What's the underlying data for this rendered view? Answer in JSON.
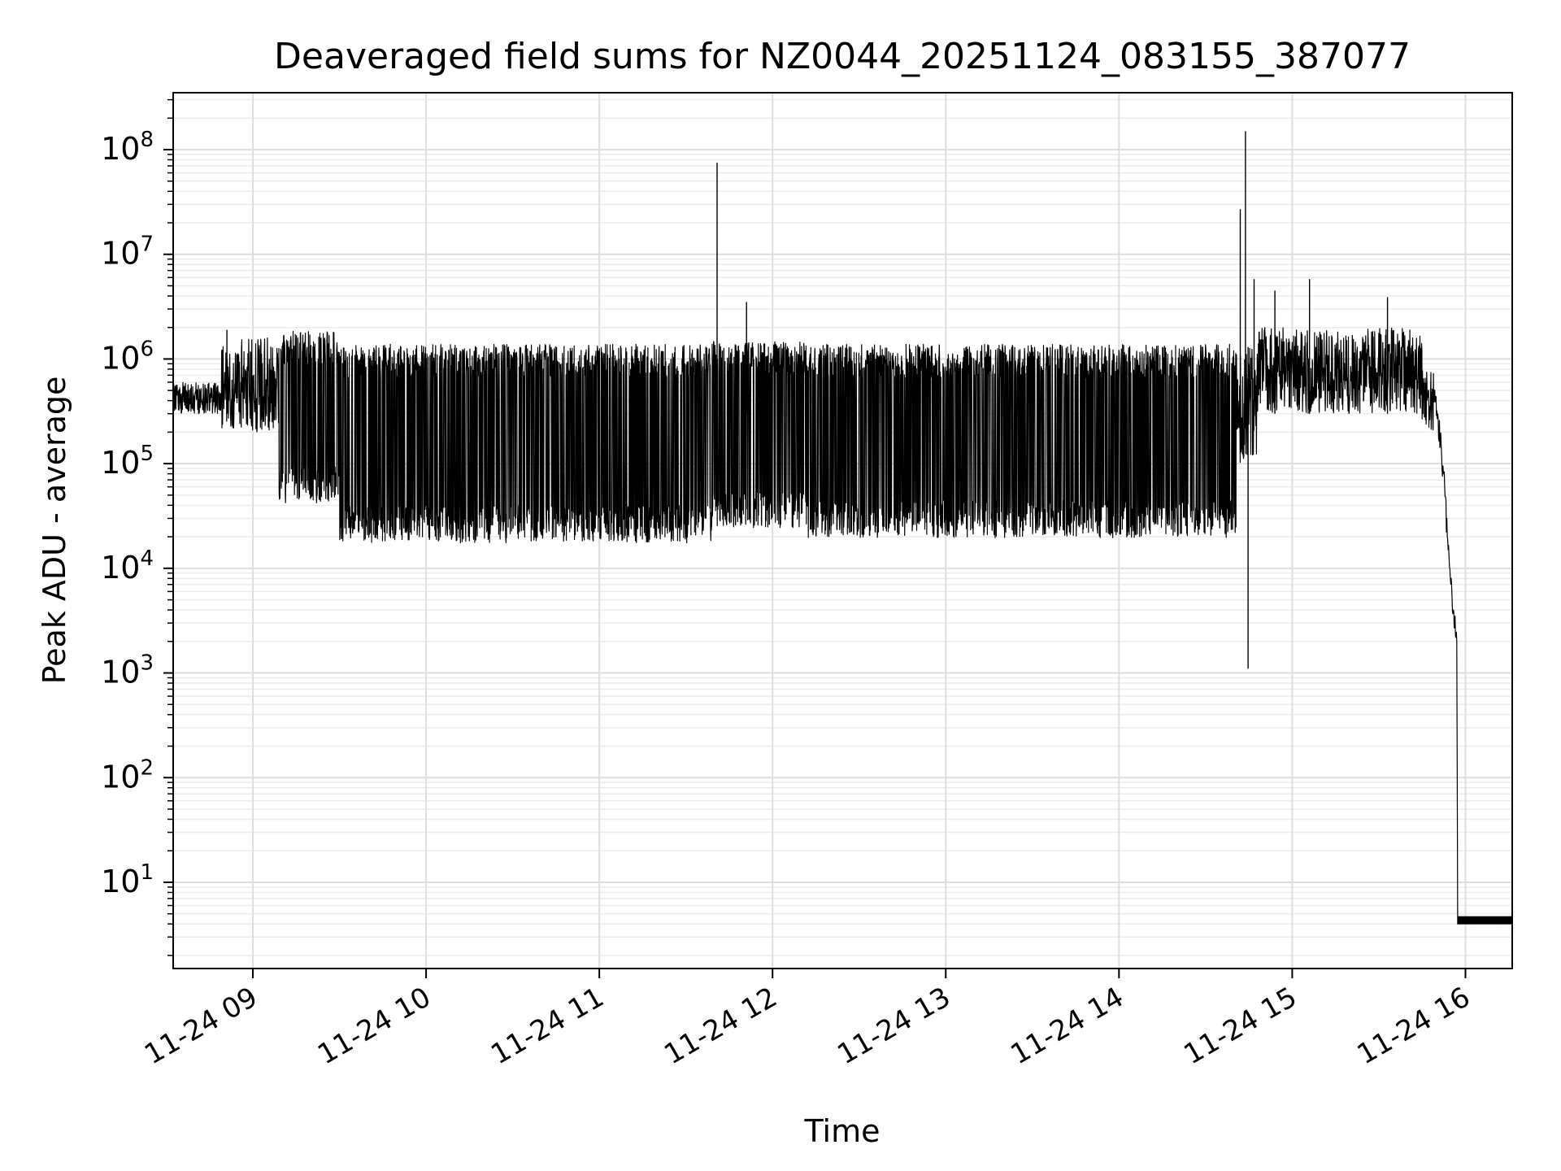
{
  "chart_data": {
    "type": "line",
    "title": "Deaveraged field sums for NZ0044_20251124_083155_387077",
    "xlabel": "Time",
    "ylabel": "Peak ADU - average",
    "yscale": "log",
    "ylim": [
      1.5,
      350000000
    ],
    "xlim_hours": [
      8.54,
      16.27
    ],
    "grid": true,
    "line_color": "#000000",
    "x_ticks": [
      {
        "hour": 9,
        "label": "11-24 09"
      },
      {
        "hour": 10,
        "label": "11-24 10"
      },
      {
        "hour": 11,
        "label": "11-24 11"
      },
      {
        "hour": 12,
        "label": "11-24 12"
      },
      {
        "hour": 13,
        "label": "11-24 13"
      },
      {
        "hour": 14,
        "label": "11-24 14"
      },
      {
        "hour": 15,
        "label": "11-24 15"
      },
      {
        "hour": 16,
        "label": "11-24 16"
      }
    ],
    "y_ticks": [
      {
        "value": 10,
        "base": "10",
        "exp": "1"
      },
      {
        "value": 100,
        "base": "10",
        "exp": "2"
      },
      {
        "value": 1000,
        "base": "10",
        "exp": "3"
      },
      {
        "value": 10000,
        "base": "10",
        "exp": "4"
      },
      {
        "value": 100000,
        "base": "10",
        "exp": "5"
      },
      {
        "value": 1000000,
        "base": "10",
        "exp": "6"
      },
      {
        "value": 10000000,
        "base": "10",
        "exp": "7"
      },
      {
        "value": 100000000,
        "base": "10",
        "exp": "8"
      }
    ],
    "segments": [
      {
        "t0": 8.54,
        "t1": 8.82,
        "low": 300000,
        "high": 600000,
        "mode": "noise"
      },
      {
        "t0": 8.82,
        "t1": 9.15,
        "low": 200000,
        "high": 1600000,
        "mode": "noise"
      },
      {
        "t0": 9.15,
        "t1": 9.5,
        "low": 60000,
        "high": 1600000,
        "mode": "osc"
      },
      {
        "t0": 9.5,
        "t1": 11.65,
        "low": 25000,
        "high": 1200000,
        "mode": "osc"
      },
      {
        "t0": 11.65,
        "t1": 12.2,
        "low": 35000,
        "high": 1300000,
        "mode": "osc"
      },
      {
        "t0": 12.2,
        "t1": 14.68,
        "low": 28000,
        "high": 1200000,
        "mode": "osc"
      },
      {
        "t0": 14.68,
        "t1": 14.8,
        "low": 100000,
        "high": 1300000,
        "mode": "noise"
      },
      {
        "t0": 14.8,
        "t1": 15.75,
        "low": 300000,
        "high": 2000000,
        "mode": "noise"
      },
      {
        "t0": 15.75,
        "t1": 15.82,
        "low": 200000,
        "high": 800000,
        "mode": "noise"
      }
    ],
    "tail": [
      {
        "hour": 15.82,
        "value": 500000
      },
      {
        "hour": 15.86,
        "value": 150000
      },
      {
        "hour": 15.88,
        "value": 60000
      },
      {
        "hour": 15.9,
        "value": 15000
      },
      {
        "hour": 15.93,
        "value": 4000
      },
      {
        "hour": 15.95,
        "value": 2000
      },
      {
        "hour": 15.955,
        "value": 4
      },
      {
        "hour": 16.27,
        "value": 4
      }
    ],
    "tail_floor": 4,
    "tail_floor_high": 4.7,
    "spikes": [
      {
        "hour": 8.85,
        "value": 1900000
      },
      {
        "hour": 11.68,
        "value": 75000000
      },
      {
        "hour": 11.85,
        "value": 3500000
      },
      {
        "hour": 14.7,
        "value": 27000000
      },
      {
        "hour": 14.73,
        "value": 150000000
      },
      {
        "hour": 14.745,
        "value": 1100
      },
      {
        "hour": 14.78,
        "value": 5800000
      },
      {
        "hour": 14.9,
        "value": 4500000
      },
      {
        "hour": 15.1,
        "value": 5800000
      },
      {
        "hour": 15.55,
        "value": 3900000
      }
    ]
  }
}
